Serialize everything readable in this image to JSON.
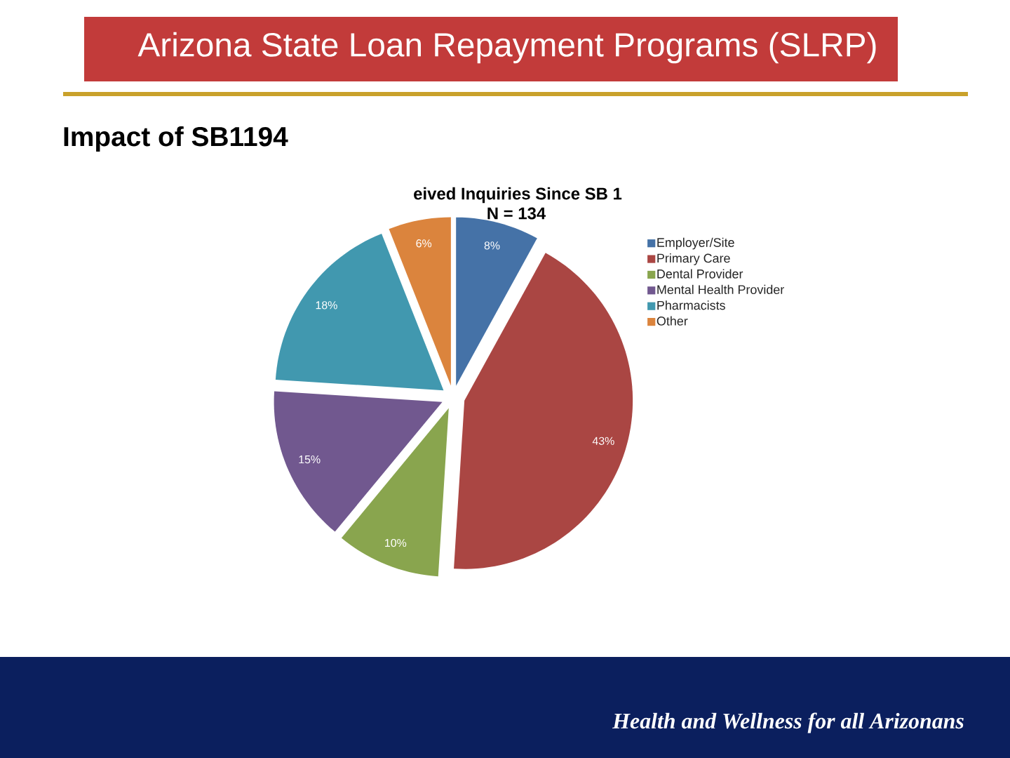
{
  "chart_data": {
    "type": "pie",
    "title": "eived Inquiries Since SB 1",
    "subtitle": "N = 134",
    "categories": [
      "Employer/Site",
      "Primary Care",
      "Dental Provider",
      "Mental Health Provider",
      "Pharmacists",
      "Other"
    ],
    "values": [
      8,
      43,
      10,
      15,
      18,
      6
    ],
    "colors": [
      "#4572a7",
      "#aa4643",
      "#89a54e",
      "#71588f",
      "#4198af",
      "#db843d"
    ],
    "value_labels": [
      "8%",
      "43%",
      "10%",
      "15%",
      "18%",
      "6%"
    ],
    "legend": "top right",
    "annotations": [
      "Arizona State Loan Repayment Programs (SLRP)",
      "Impact of SB1194",
      "Health and Wellness for all Arizonans"
    ]
  }
}
